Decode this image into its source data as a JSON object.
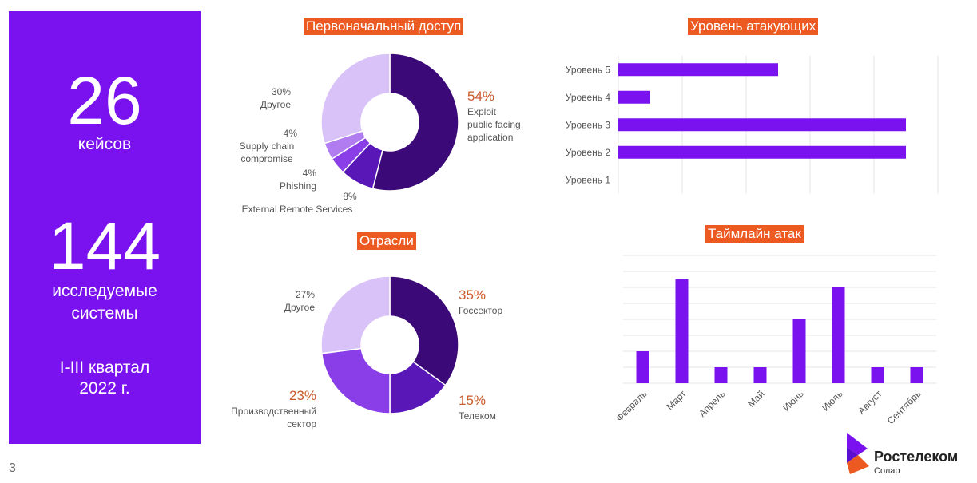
{
  "left_panel": {
    "cases_number": "26",
    "cases_label": "кейсов",
    "systems_number": "144",
    "systems_label_1": "исследуемые",
    "systems_label_2": "системы",
    "period_1": "I-III квартал",
    "period_2": "2022 г."
  },
  "colors": {
    "panel": "#7a12f0",
    "header_bg": "#ec5a22",
    "accent_pct": "#c95a2a",
    "bar": "#7a12f0",
    "donut": [
      "#3b0a78",
      "#5a17b8",
      "#8a3ee8",
      "#b07cf0",
      "#d9c2f7"
    ]
  },
  "page_number": "3",
  "logo": {
    "name": "Ростелеком",
    "sub": "Солар"
  },
  "chart_data": [
    {
      "type": "pie",
      "title": "Первоначальный доступ",
      "slices": [
        {
          "label": "Exploit public facing application",
          "label_lines": [
            "Exploit",
            "public facing",
            "application"
          ],
          "value": 54,
          "display": "54%"
        },
        {
          "label": "External Remote Services",
          "label_lines": [
            "External Remote Services"
          ],
          "value": 8,
          "display": "8%"
        },
        {
          "label": "Phishing",
          "label_lines": [
            "Phishing"
          ],
          "value": 4,
          "display": "4%"
        },
        {
          "label": "Supply chain compromise",
          "label_lines": [
            "Supply chain",
            "compromise"
          ],
          "value": 4,
          "display": "4%"
        },
        {
          "label": "Другое",
          "label_lines": [
            "Другое"
          ],
          "value": 30,
          "display": "30%"
        }
      ]
    },
    {
      "type": "pie",
      "title": "Отрасли",
      "slices": [
        {
          "label": "Госсектор",
          "label_lines": [
            "Госсектор"
          ],
          "value": 35,
          "display": "35%"
        },
        {
          "label": "Телеком",
          "label_lines": [
            "Телеком"
          ],
          "value": 15,
          "display": "15%"
        },
        {
          "label": "Производственный сектор",
          "label_lines": [
            "Производственный",
            "сектор"
          ],
          "value": 23,
          "display": "23%"
        },
        {
          "label": "Другое",
          "label_lines": [
            "Другое"
          ],
          "value": 27,
          "display": "27%"
        }
      ]
    },
    {
      "type": "bar",
      "orientation": "horizontal",
      "title": "Уровень атакующих",
      "categories": [
        "Уровень 5",
        "Уровень 4",
        "Уровень 3",
        "Уровень 2",
        "Уровень 1"
      ],
      "values": [
        5,
        1,
        9,
        9,
        0
      ],
      "xlim": [
        0,
        10
      ],
      "grid": true
    },
    {
      "type": "bar",
      "title": "Таймлайн атак",
      "categories": [
        "Февраль",
        "Март",
        "Апрель",
        "Май",
        "Июнь",
        "Июль",
        "Август",
        "Сентябрь"
      ],
      "values": [
        2,
        6.5,
        1,
        1,
        4,
        6,
        1,
        1
      ],
      "ylim": [
        0,
        8.5
      ],
      "grid": true
    }
  ]
}
